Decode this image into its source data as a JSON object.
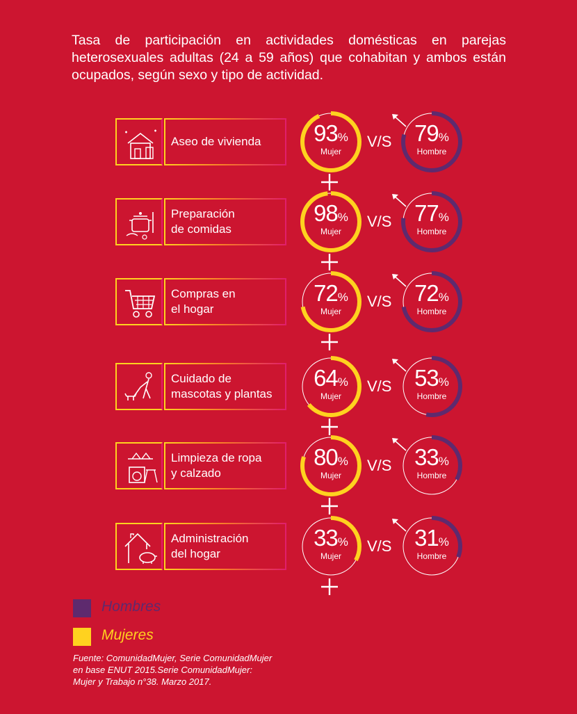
{
  "title": "Tasa de participación en actividades domésticas en parejas heterosexuales adultas (24 a 59 años) que cohabitan y ambos están ocupados, según sexo y tipo de actividad.",
  "colors": {
    "background": "#cc1530",
    "mujeres": "#ffd21f",
    "hombres": "#5e2a6e",
    "ring_track": "#ffffff"
  },
  "vs_label": "V/S",
  "percent_sign": "%",
  "mujer_label": "Mujer",
  "hombre_label": "Hombre",
  "chart_data": {
    "type": "pie",
    "series": [
      {
        "name": "Mujer",
        "values": [
          93,
          98,
          72,
          64,
          80,
          33
        ]
      },
      {
        "name": "Hombre",
        "values": [
          79,
          77,
          72,
          53,
          33,
          31
        ]
      }
    ],
    "categories": [
      "Aseo de vivienda",
      "Preparación\nde comidas",
      "Compras en\nel hogar",
      "Cuidado de\nmascotas y plantas",
      "Limpieza de ropa\ny calzado",
      "Administración\ndel hogar"
    ],
    "icons": [
      "house-cleaning-icon",
      "cooking-pot-icon",
      "shopping-cart-icon",
      "dog-walking-icon",
      "laundry-icon",
      "house-piggy-bank-icon"
    ],
    "legend": [
      {
        "label": "Hombres",
        "color": "#5e2a6e"
      },
      {
        "label": "Mujeres",
        "color": "#ffd21f"
      }
    ]
  },
  "source": "Fuente: ComunidadMujer, Serie ComunidadMujer\n en base ENUT 2015.Serie ComunidadMujer:\nMujer y Trabajo n°38. Marzo 2017."
}
